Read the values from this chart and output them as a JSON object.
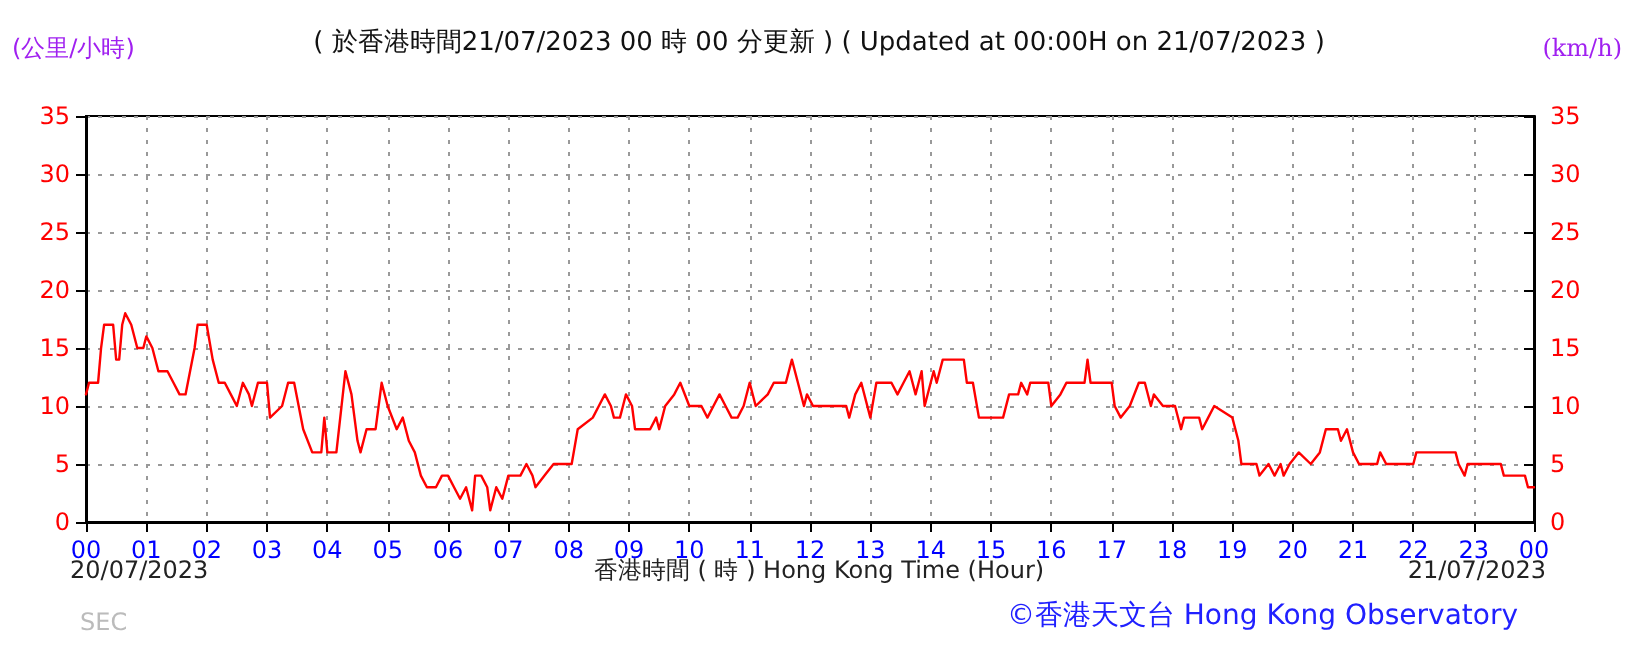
{
  "chart_data": {
    "type": "line",
    "title": "( 於香港時間21/07/2023 00 時 00 分更新 ) ( Updated at 00:00H on 21/07/2023 )",
    "xlabel": "香港時間 ( 時 ) Hong Kong Time (Hour)",
    "ylabel": "(公里/小時)",
    "y2label": "(km/h)",
    "annotations": [
      "20/07/2023",
      "21/07/2023",
      "SEC",
      "©香港天文台 Hong Kong Observatory"
    ],
    "series": [
      {
        "color": "#ff0000",
        "x": [
          0,
          0.05,
          0.2,
          0.25,
          0.3,
          0.45,
          0.5,
          0.55,
          0.6,
          0.65,
          0.75,
          0.85,
          0.95,
          1.0,
          1.1,
          1.2,
          1.35,
          1.45,
          1.55,
          1.65,
          1.8,
          1.85,
          2.0,
          2.1,
          2.2,
          2.3,
          2.4,
          2.5,
          2.6,
          2.7,
          2.75,
          2.85,
          3.0,
          3.05,
          3.25,
          3.35,
          3.45,
          3.6,
          3.75,
          3.9,
          3.95,
          4.0,
          4.15,
          4.3,
          4.4,
          4.5,
          4.55,
          4.65,
          4.8,
          4.85,
          4.9,
          5.0,
          5.15,
          5.25,
          5.35,
          5.45,
          5.55,
          5.65,
          5.8,
          5.9,
          6.0,
          6.1,
          6.2,
          6.3,
          6.4,
          6.45,
          6.55,
          6.65,
          6.7,
          6.8,
          6.9,
          7.0,
          7.2,
          7.3,
          7.4,
          7.45,
          7.6,
          7.75,
          7.95,
          8.05,
          8.15,
          8.4,
          8.5,
          8.6,
          8.7,
          8.75,
          8.85,
          8.9,
          8.95,
          9.05,
          9.1,
          9.35,
          9.45,
          9.5,
          9.6,
          9.75,
          9.85,
          10.0,
          10.2,
          10.3,
          10.4,
          10.5,
          10.6,
          10.7,
          10.8,
          10.9,
          11.0,
          11.1,
          11.3,
          11.4,
          11.6,
          11.7,
          11.8,
          11.9,
          11.95,
          12.05,
          12.6,
          12.65,
          12.75,
          12.85,
          13.0,
          13.1,
          13.35,
          13.45,
          13.55,
          13.65,
          13.75,
          13.85,
          13.9,
          14.0,
          14.05,
          14.1,
          14.2,
          14.55,
          14.6,
          14.7,
          14.8,
          15.2,
          15.3,
          15.45,
          15.5,
          15.6,
          15.65,
          15.95,
          16.0,
          16.15,
          16.25,
          16.55,
          16.6,
          16.65,
          17.0,
          17.05,
          17.15,
          17.3,
          17.45,
          17.55,
          17.65,
          17.7,
          17.85,
          18.05,
          18.15,
          18.2,
          18.45,
          18.5,
          18.6,
          18.7,
          19.0,
          19.1,
          19.15,
          19.4,
          19.45,
          19.6,
          19.7,
          19.8,
          19.85,
          19.95,
          20.1,
          20.3,
          20.45,
          20.55,
          20.75,
          20.8,
          20.9,
          21.0,
          21.1,
          21.4,
          21.45,
          21.55,
          22.0,
          22.05,
          22.7,
          22.75,
          22.85,
          22.9,
          23.45,
          23.5,
          23.85,
          23.9,
          24.0
        ],
        "values": [
          11,
          12,
          12,
          15,
          17,
          17,
          14,
          14,
          17,
          18,
          17,
          15,
          15,
          16,
          15,
          13,
          13,
          12,
          11,
          11,
          15,
          17,
          17,
          14,
          12,
          12,
          11,
          10,
          12,
          11,
          10,
          12,
          12,
          9,
          10,
          12,
          12,
          8,
          6,
          6,
          9,
          6,
          6,
          13,
          11,
          7,
          6,
          8,
          8,
          10,
          12,
          10,
          8,
          9,
          7,
          6,
          4,
          3,
          3,
          4,
          4,
          3,
          2,
          3,
          1,
          4,
          4,
          3,
          1,
          3,
          2,
          4,
          4,
          5,
          4,
          3,
          4,
          5,
          5,
          5,
          8,
          9,
          10,
          11,
          10,
          9,
          9,
          10,
          11,
          10,
          8,
          8,
          9,
          8,
          10,
          11,
          12,
          10,
          10,
          9,
          10,
          11,
          10,
          9,
          9,
          10,
          12,
          10,
          11,
          12,
          12,
          14,
          12,
          10,
          11,
          10,
          10,
          9,
          11,
          12,
          9,
          12,
          12,
          11,
          12,
          13,
          11,
          13,
          10,
          12,
          13,
          12,
          14,
          14,
          12,
          12,
          9,
          9,
          11,
          11,
          12,
          11,
          12,
          12,
          10,
          11,
          12,
          12,
          14,
          12,
          12,
          10,
          9,
          10,
          12,
          12,
          10,
          11,
          10,
          10,
          8,
          9,
          9,
          8,
          9,
          10,
          9,
          7,
          5,
          5,
          4,
          5,
          4,
          5,
          4,
          5,
          6,
          5,
          6,
          8,
          8,
          7,
          8,
          6,
          5,
          5,
          6,
          5,
          5,
          6,
          6,
          5,
          4,
          5,
          5,
          4,
          4,
          3,
          3
        ]
      }
    ],
    "xlim": [
      0,
      24
    ],
    "xticks": [
      {
        "value": 0,
        "label": "00"
      },
      {
        "value": 1,
        "label": "01"
      },
      {
        "value": 2,
        "label": "02"
      },
      {
        "value": 3,
        "label": "03"
      },
      {
        "value": 4,
        "label": "04"
      },
      {
        "value": 5,
        "label": "05"
      },
      {
        "value": 6,
        "label": "06"
      },
      {
        "value": 7,
        "label": "07"
      },
      {
        "value": 8,
        "label": "08"
      },
      {
        "value": 9,
        "label": "09"
      },
      {
        "value": 10,
        "label": "10"
      },
      {
        "value": 11,
        "label": "11"
      },
      {
        "value": 12,
        "label": "12"
      },
      {
        "value": 13,
        "label": "13"
      },
      {
        "value": 14,
        "label": "14"
      },
      {
        "value": 15,
        "label": "15"
      },
      {
        "value": 16,
        "label": "16"
      },
      {
        "value": 17,
        "label": "17"
      },
      {
        "value": 18,
        "label": "18"
      },
      {
        "value": 19,
        "label": "19"
      },
      {
        "value": 20,
        "label": "20"
      },
      {
        "value": 21,
        "label": "21"
      },
      {
        "value": 22,
        "label": "22"
      },
      {
        "value": 23,
        "label": "23"
      },
      {
        "value": 24,
        "label": "00"
      }
    ],
    "ylim": [
      0,
      35
    ],
    "yticks": [
      0,
      5,
      10,
      15,
      20,
      25,
      30,
      35
    ],
    "y2lim": [
      0,
      35
    ],
    "y2ticks": [
      0,
      5,
      10,
      15,
      20,
      25,
      30,
      35
    ],
    "grid": true,
    "marker": "none",
    "line_style": "solid"
  }
}
